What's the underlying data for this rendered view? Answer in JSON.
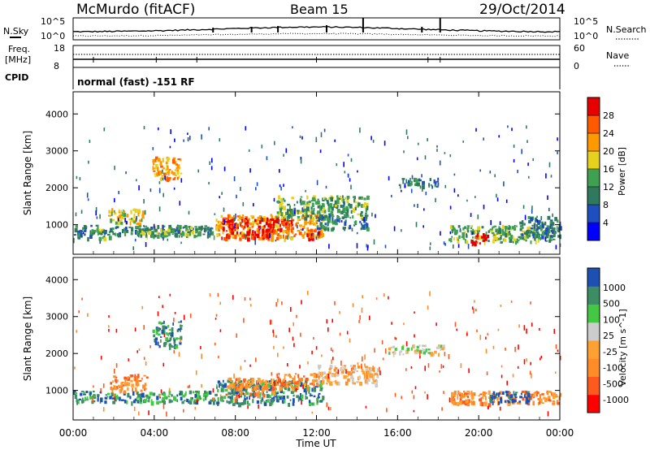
{
  "header": {
    "station": "McMurdo (fitACF)",
    "beam": "Beam 15",
    "date": "29/Oct/2014"
  },
  "noise_panel": {
    "left_label": "N.Sky",
    "right_label": "N.Search",
    "tick_top": "10^5",
    "tick_bottom": "10^0"
  },
  "freq_panel": {
    "left_label_1": "Freq.",
    "left_label_2": "[MHz]",
    "left_tick_top": "18",
    "left_tick_bottom": "8",
    "right_label": "Nave",
    "right_tick_top": "60",
    "right_tick_bottom": "0"
  },
  "cpid_panel": {
    "label": "CPID",
    "mode": "normal (fast) -151 RF"
  },
  "colors": {
    "power": [
      "#0000ff",
      "#1f4fbf",
      "#2f7a5f",
      "#3ea050",
      "#e6d21e",
      "#ff9900",
      "#ff5a00",
      "#e60000"
    ],
    "velocity": [
      "#ff0000",
      "#ff5a1e",
      "#ff8c28",
      "#ffa032",
      "#cccccc",
      "#44c844",
      "#3c8c64",
      "#1e50b4"
    ]
  },
  "chart_data": [
    {
      "type": "heatmap",
      "title": "Power",
      "ylabel": "Slant Range [km]",
      "xlabel": "Time UT",
      "x_ticks": [
        "00:00",
        "04:00",
        "08:00",
        "12:00",
        "16:00",
        "20:00",
        "00:00"
      ],
      "y_ticks": [
        1000,
        2000,
        3000,
        4000
      ],
      "ylim": [
        200,
        4600
      ],
      "xlim_hours": [
        0,
        24
      ],
      "colorbar": {
        "label": "Power [dB]",
        "ticks": [
          "4",
          "8",
          "12",
          "16",
          "20",
          "24",
          "28"
        ],
        "range": [
          0,
          32
        ]
      },
      "features": [
        {
          "t0": 0.0,
          "t1": 7.0,
          "r0": 700,
          "r1": 1000,
          "v": 8
        },
        {
          "t0": 0.5,
          "t1": 1.5,
          "r0": 650,
          "r1": 900,
          "v": 14
        },
        {
          "t0": 1.7,
          "t1": 3.4,
          "r0": 1050,
          "r1": 1450,
          "v": 18
        },
        {
          "t0": 3.9,
          "t1": 5.3,
          "r0": 2250,
          "r1": 2850,
          "v": 22
        },
        {
          "t0": 3.2,
          "t1": 6.3,
          "r0": 700,
          "r1": 1000,
          "v": 14
        },
        {
          "t0": 7.0,
          "t1": 12.3,
          "r0": 650,
          "r1": 1300,
          "v": 20
        },
        {
          "t0": 7.3,
          "t1": 9.8,
          "r0": 650,
          "r1": 1200,
          "v": 28
        },
        {
          "t0": 9.6,
          "t1": 10.8,
          "r0": 800,
          "r1": 1200,
          "v": 28
        },
        {
          "t0": 11.5,
          "t1": 12.1,
          "r0": 600,
          "r1": 900,
          "v": 28
        },
        {
          "t0": 10.0,
          "t1": 14.5,
          "r0": 1200,
          "r1": 1800,
          "v": 12
        },
        {
          "t0": 12.0,
          "t1": 14.5,
          "r0": 900,
          "r1": 1300,
          "v": 8
        },
        {
          "t0": 16.0,
          "t1": 18.0,
          "r0": 2050,
          "r1": 2300,
          "v": 8
        },
        {
          "t0": 18.5,
          "t1": 23.8,
          "r0": 550,
          "r1": 1000,
          "v": 12
        },
        {
          "t0": 19.5,
          "t1": 20.4,
          "r0": 500,
          "r1": 800,
          "v": 28
        },
        {
          "t0": 22.0,
          "t1": 24.0,
          "r0": 700,
          "r1": 1250,
          "v": 8
        }
      ]
    },
    {
      "type": "heatmap",
      "title": "Velocity",
      "ylabel": "Slant Range [km]",
      "xlabel": "Time UT",
      "x_ticks": [
        "00:00",
        "04:00",
        "08:00",
        "12:00",
        "16:00",
        "20:00",
        "00:00"
      ],
      "y_ticks": [
        1000,
        2000,
        3000,
        4000
      ],
      "ylim": [
        200,
        4600
      ],
      "xlim_hours": [
        0,
        24
      ],
      "colorbar": {
        "label": "Velocity [m s^-1]",
        "ticks": [
          "1000",
          "500",
          "100",
          "25",
          "-25",
          "-100",
          "-500",
          "-1000"
        ]
      },
      "features": [
        {
          "t0": 0.0,
          "t1": 7.0,
          "r0": 700,
          "r1": 1000,
          "v": 6
        },
        {
          "t0": 1.8,
          "t1": 3.6,
          "r0": 1000,
          "r1": 1450,
          "v": 2
        },
        {
          "t0": 3.9,
          "t1": 5.3,
          "r0": 2200,
          "r1": 2900,
          "v": 6
        },
        {
          "t0": 7.0,
          "t1": 12.3,
          "r0": 650,
          "r1": 1300,
          "v": 6
        },
        {
          "t0": 7.5,
          "t1": 10.0,
          "r0": 900,
          "r1": 1350,
          "v": 2
        },
        {
          "t0": 10.0,
          "t1": 12.0,
          "r0": 1100,
          "r1": 1500,
          "v": 2
        },
        {
          "t0": 12.0,
          "t1": 15.0,
          "r0": 1200,
          "r1": 1700,
          "v": 3
        },
        {
          "t0": 15.5,
          "t1": 18.2,
          "r0": 2000,
          "r1": 2250,
          "v": 4
        },
        {
          "t0": 18.5,
          "t1": 24.0,
          "r0": 650,
          "r1": 1000,
          "v": 2
        },
        {
          "t0": 20.5,
          "t1": 22.5,
          "r0": 700,
          "r1": 1000,
          "v": 7
        }
      ]
    }
  ]
}
